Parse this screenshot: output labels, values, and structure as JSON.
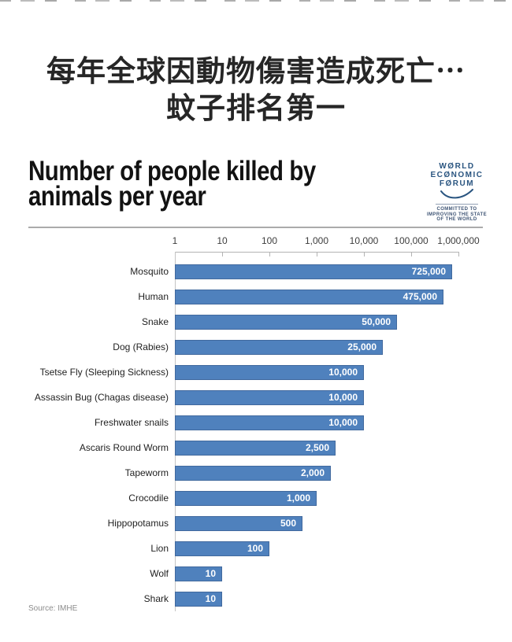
{
  "page": {
    "headline_line1": "每年全球因動物傷害造成死亡⋯",
    "headline_line2": "蚊子排名第一"
  },
  "infographic": {
    "title_line1": "Number of people killed by",
    "title_line2": "animals per year",
    "source": "Source: IMHE",
    "logo": {
      "line1": "WØRLD",
      "line2": "ECØNOMIC",
      "line3": "FØRUM",
      "tagline_line1": "COMMITTED TO",
      "tagline_line2": "IMPROVING THE STATE",
      "tagline_line3": "OF THE WORLD",
      "color": "#2a5580"
    },
    "colors": {
      "bar_fill": "#4f81bd",
      "bar_border": "#41699e",
      "value_text": "#ffffff",
      "axis_line": "#b3b3b3",
      "grid_vertical": "#c4c4c4"
    }
  },
  "chart_data": {
    "type": "bar",
    "orientation": "horizontal",
    "scale": "log10",
    "title": "Number of people killed by animals per year",
    "xlabel": "",
    "ylabel": "",
    "xlim": [
      1,
      1000000
    ],
    "x_ticks": [
      "1",
      "10",
      "100",
      "1,000",
      "10,000",
      "100,000",
      "1,000,000"
    ],
    "grid": false,
    "legend": "none",
    "categories": [
      "Mosquito",
      "Human",
      "Snake",
      "Dog (Rabies)",
      "Tsetse Fly (Sleeping Sickness)",
      "Assassin Bug (Chagas disease)",
      "Freshwater snails",
      "Ascaris Round Worm",
      "Tapeworm",
      "Crocodile",
      "Hippopotamus",
      "Lion",
      "Wolf",
      "Shark"
    ],
    "values": [
      725000,
      475000,
      50000,
      25000,
      10000,
      10000,
      10000,
      2500,
      2000,
      1000,
      500,
      100,
      10,
      10
    ],
    "value_labels": [
      "725,000",
      "475,000",
      "50,000",
      "25,000",
      "10,000",
      "10,000",
      "10,000",
      "2,500",
      "2,000",
      "1,000",
      "500",
      "100",
      "10",
      "10"
    ],
    "source": "Source: IMHE"
  }
}
